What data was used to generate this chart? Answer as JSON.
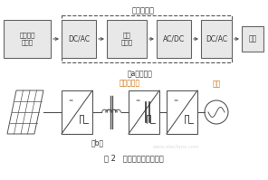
{
  "title_top": "并网逆变器",
  "label_a": "（a）原理图",
  "label_b": "（b）",
  "label_fig": "图 2   高频变压器隔离方式",
  "label_gaoping2": "高频变压器",
  "label_dianwang_bot": "电网",
  "box_solar": "太阳能电\n池阵列",
  "box1": "DC/AC",
  "box2": "高频\n变压器",
  "box3": "AC/DC",
  "box4": "DC/AC",
  "box_grid": "电网",
  "font_color": "#333333",
  "box_color": "#e8e8e8",
  "box_edge": "#666666",
  "dashed_color": "#555555",
  "arrow_color": "#555555",
  "text_color_orange": "#cc6600"
}
